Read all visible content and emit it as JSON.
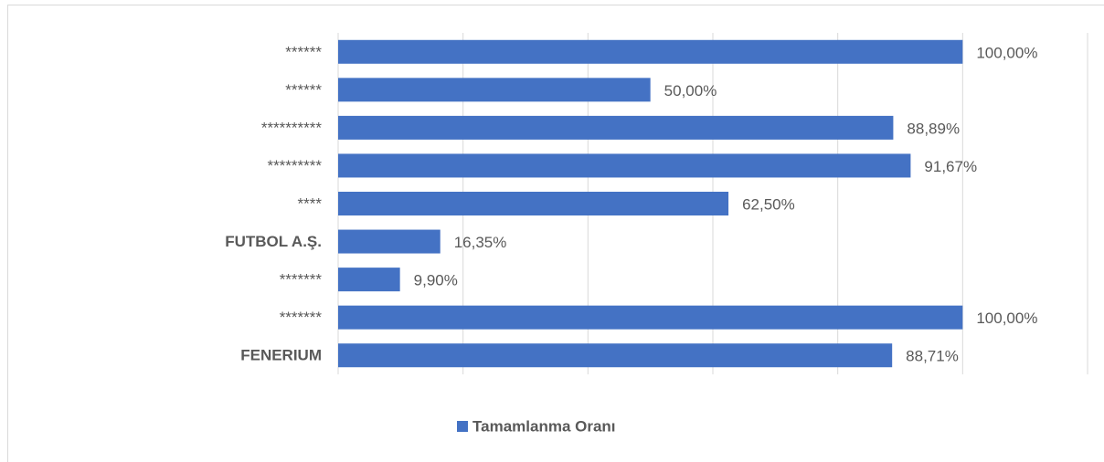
{
  "chart_data": {
    "type": "barh",
    "categories": [
      "******",
      "******",
      "**********",
      "*********",
      "****",
      "FUTBOL A.Ş.",
      "*******",
      "*******",
      "FENERIUM"
    ],
    "category_bold": [
      false,
      false,
      false,
      false,
      false,
      true,
      false,
      false,
      true
    ],
    "series": [
      {
        "name": "Tamamlanma Oranı",
        "color": "#4472c4",
        "values": [
          100,
          50,
          88.89,
          91.67,
          62.5,
          16.35,
          9.9,
          100,
          88.71
        ],
        "value_labels": [
          "100,00%",
          "50,00%",
          "88,89%",
          "91,67%",
          "62,50%",
          "16,35%",
          "9,90%",
          "100,00%",
          "88,71%"
        ]
      }
    ],
    "xlim": [
      0,
      120
    ],
    "xticks": [
      0,
      20,
      40,
      60,
      80,
      100,
      120
    ],
    "grid": true,
    "legend": "bottom"
  }
}
